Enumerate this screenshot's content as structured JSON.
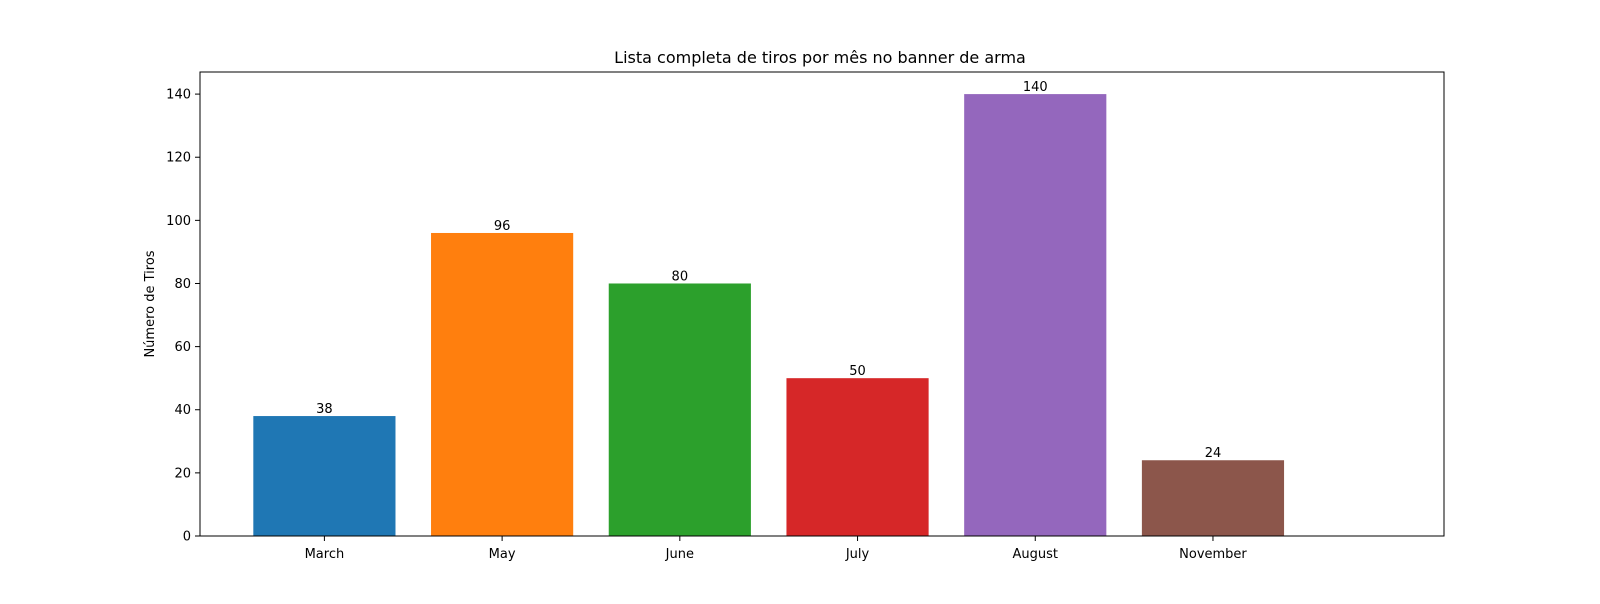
{
  "chart_data": {
    "type": "bar",
    "title": "Lista completa de tiros por mês no banner de arma",
    "xlabel": "",
    "ylabel": "Número de Tiros",
    "categories": [
      "March",
      "May",
      "June",
      "July",
      "August",
      "November"
    ],
    "values": [
      38,
      96,
      80,
      50,
      140,
      24
    ],
    "data_labels": [
      "38",
      "96",
      "80",
      "50",
      "140",
      "24"
    ],
    "colors": [
      "#1f77b4",
      "#ff7f0e",
      "#2ca02c",
      "#d62728",
      "#9467bd",
      "#8c564b"
    ],
    "ylim": [
      0,
      147
    ],
    "yticks": [
      0,
      20,
      40,
      60,
      80,
      100,
      120,
      140
    ],
    "ytick_labels": [
      "0",
      "20",
      "40",
      "60",
      "80",
      "100",
      "120",
      "140"
    ],
    "grid": false,
    "legend": "none"
  }
}
